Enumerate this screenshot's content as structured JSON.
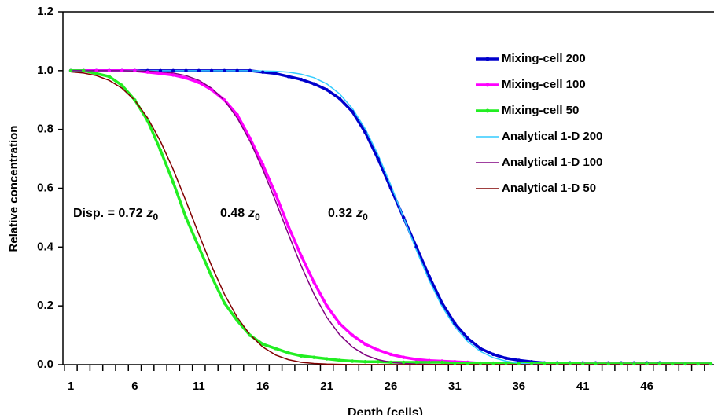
{
  "chart_data": {
    "type": "line",
    "x_label": "Depth (cells)",
    "y_label": "Relative concentration",
    "categories": [
      1,
      null,
      null,
      null,
      null,
      6,
      null,
      null,
      null,
      null,
      11,
      null,
      null,
      null,
      null,
      16,
      null,
      null,
      null,
      null,
      21,
      null,
      null,
      null,
      null,
      26,
      null,
      null,
      null,
      null,
      31,
      null,
      null,
      null,
      null,
      36,
      null,
      null,
      null,
      null,
      41,
      null,
      null,
      null,
      null,
      46,
      null,
      null,
      null,
      null,
      null
    ],
    "ylim": [
      0,
      1.2
    ],
    "yticks": [
      {
        "value": 0,
        "label": "0.0"
      },
      {
        "value": 0.2,
        "label": "0.2"
      },
      {
        "value": 0.4,
        "label": "0.4"
      },
      {
        "value": 0.6,
        "label": "0.6"
      },
      {
        "value": 0.8,
        "label": "0.8"
      },
      {
        "value": 1,
        "label": "1.0"
      },
      {
        "value": 1.2,
        "label": "1.2"
      }
    ],
    "legend": "top-right",
    "grid": false,
    "annotations": [
      {
        "text": "Disp. = 0.72",
        "symbol": "z",
        "subscript": "0"
      },
      {
        "text": "0.48",
        "symbol": "z",
        "subscript": "0"
      },
      {
        "text": "0.32",
        "symbol": "z",
        "subscript": "0"
      }
    ],
    "series": [
      {
        "name": "Mixing-cell 200",
        "color": "#0000cc",
        "marker": true,
        "values": [
          1,
          1,
          1,
          1,
          1,
          1,
          1,
          1,
          1,
          1,
          1,
          1,
          1,
          1,
          1,
          0.995,
          0.99,
          0.98,
          0.97,
          0.955,
          0.935,
          0.905,
          0.86,
          0.79,
          0.7,
          0.6,
          0.5,
          0.4,
          0.3,
          0.21,
          0.14,
          0.09,
          0.055,
          0.035,
          0.022,
          0.015,
          0.01,
          0.006,
          0.006,
          0.006,
          0.006,
          0.006,
          0.006,
          0.006,
          0.006,
          0.006,
          0.006,
          0.003,
          0.003,
          0.003,
          0.003
        ]
      },
      {
        "name": "Mixing-cell 100",
        "color": "#ff00ff",
        "marker": true,
        "values": [
          1,
          1,
          1,
          1,
          1,
          1,
          0.995,
          0.99,
          0.985,
          0.975,
          0.96,
          0.935,
          0.9,
          0.85,
          0.77,
          0.68,
          0.58,
          0.47,
          0.37,
          0.28,
          0.2,
          0.14,
          0.1,
          0.07,
          0.05,
          0.035,
          0.025,
          0.018,
          0.014,
          0.012,
          0.01,
          0.008,
          0.005,
          0.005,
          0.005,
          0.005,
          0.005,
          0.005,
          0.005,
          0.005,
          0.005,
          0.005,
          0.005,
          0.005,
          0.005,
          0.003,
          0.003,
          0.003,
          0.003,
          0.003,
          0.003
        ]
      },
      {
        "name": "Mixing-cell 50",
        "color": "#22ee22",
        "marker": true,
        "values": [
          1,
          1,
          0.99,
          0.98,
          0.95,
          0.9,
          0.83,
          0.73,
          0.62,
          0.5,
          0.4,
          0.3,
          0.21,
          0.15,
          0.1,
          0.07,
          0.055,
          0.04,
          0.03,
          0.025,
          0.02,
          0.015,
          0.012,
          0.01,
          0.01,
          0.008,
          0.008,
          0.008,
          0.008,
          0.008,
          0.005,
          0.005,
          0.005,
          0.005,
          0.005,
          0.005,
          0.005,
          0.005,
          0.005,
          0.005,
          0.003,
          0.003,
          0.003,
          0.003,
          0.003,
          0.003,
          0.003,
          0.003,
          0.003,
          0.003,
          0.003
        ]
      },
      {
        "name": "Analytical 1-D 200",
        "color": "#33ccff",
        "marker": false,
        "values": [
          1,
          1,
          1,
          1,
          1,
          1,
          1,
          1,
          1,
          1,
          1,
          1,
          1,
          1,
          1,
          0.999,
          0.998,
          0.995,
          0.988,
          0.976,
          0.955,
          0.921,
          0.871,
          0.802,
          0.714,
          0.611,
          0.5,
          0.389,
          0.286,
          0.198,
          0.129,
          0.079,
          0.045,
          0.024,
          0.012,
          0.005,
          0.002,
          0,
          0,
          0,
          0,
          0,
          0,
          0,
          0,
          0,
          0,
          0,
          0,
          0,
          0
        ]
      },
      {
        "name": "Analytical 1-D 100",
        "color": "#800080",
        "marker": false,
        "values": [
          1,
          1,
          1,
          1,
          1,
          0.999,
          0.999,
          0.996,
          0.992,
          0.983,
          0.967,
          0.94,
          0.899,
          0.839,
          0.76,
          0.664,
          0.556,
          0.444,
          0.336,
          0.24,
          0.161,
          0.102,
          0.06,
          0.033,
          0.017,
          0.008,
          0.004,
          0.002,
          0.001,
          0,
          0,
          0,
          0,
          0,
          0,
          0,
          0,
          0,
          0,
          0,
          0,
          0,
          0,
          0,
          0,
          0,
          0,
          0,
          0,
          0,
          0
        ]
      },
      {
        "name": "Analytical 1-D 50",
        "color": "#800000",
        "marker": false,
        "values": [
          0.996,
          0.992,
          0.983,
          0.967,
          0.94,
          0.899,
          0.839,
          0.76,
          0.664,
          0.556,
          0.444,
          0.336,
          0.24,
          0.161,
          0.102,
          0.06,
          0.033,
          0.017,
          0.008,
          0.004,
          0.002,
          0.001,
          0,
          0,
          0,
          0,
          0,
          0,
          0,
          0,
          0,
          0,
          0,
          0,
          0,
          0,
          0,
          0,
          0,
          0,
          0,
          0,
          0,
          0,
          0,
          0,
          0,
          0,
          0,
          0,
          0
        ]
      }
    ]
  }
}
